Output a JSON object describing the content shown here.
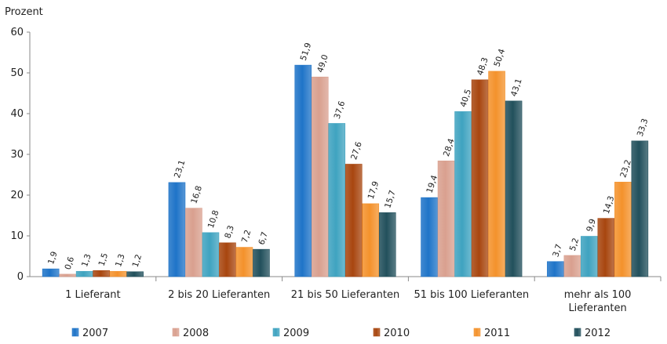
{
  "chart_data": {
    "type": "bar",
    "ylabel": "Prozent",
    "ylim": [
      0,
      60
    ],
    "yticks": [
      0,
      10,
      20,
      30,
      40,
      50,
      60
    ],
    "categories": [
      [
        "1 Lieferant"
      ],
      [
        "2 bis 20 Lieferanten"
      ],
      [
        "21 bis 50 Lieferanten"
      ],
      [
        "51 bis 100 Lieferanten"
      ],
      [
        "mehr als 100",
        "Lieferanten"
      ]
    ],
    "series": [
      {
        "name": "2007",
        "color": "#1f74c8",
        "values": [
          1.9,
          23.1,
          51.9,
          19.4,
          3.7
        ],
        "labels": [
          "1,9",
          "23,1",
          "51,9",
          "19,4",
          "3,7"
        ]
      },
      {
        "name": "2008",
        "color": "#d9a08f",
        "values": [
          0.6,
          16.8,
          49.0,
          28.4,
          5.2
        ],
        "labels": [
          "0,6",
          "16,8",
          "49,0",
          "28,4",
          "5,2"
        ]
      },
      {
        "name": "2009",
        "color": "#3fa3c0",
        "values": [
          1.3,
          10.8,
          37.6,
          40.5,
          9.9
        ],
        "labels": [
          "1,3",
          "10,8",
          "37,6",
          "40,5",
          "9,9"
        ]
      },
      {
        "name": "2010",
        "color": "#a8460f",
        "values": [
          1.5,
          8.3,
          27.6,
          48.3,
          14.3
        ],
        "labels": [
          "1,5",
          "8,3",
          "27,6",
          "48,3",
          "14,3"
        ]
      },
      {
        "name": "2011",
        "color": "#f4922c",
        "values": [
          1.3,
          7.2,
          17.9,
          50.4,
          23.2
        ],
        "labels": [
          "1,3",
          "7,2",
          "17,9",
          "50,4",
          "23,2"
        ]
      },
      {
        "name": "2012",
        "color": "#22505c",
        "values": [
          1.2,
          6.7,
          15.7,
          43.1,
          33.3
        ],
        "labels": [
          "1,2",
          "6,7",
          "15,7",
          "43,1",
          "33,3"
        ]
      }
    ],
    "legend_position": "bottom",
    "grid": false
  }
}
